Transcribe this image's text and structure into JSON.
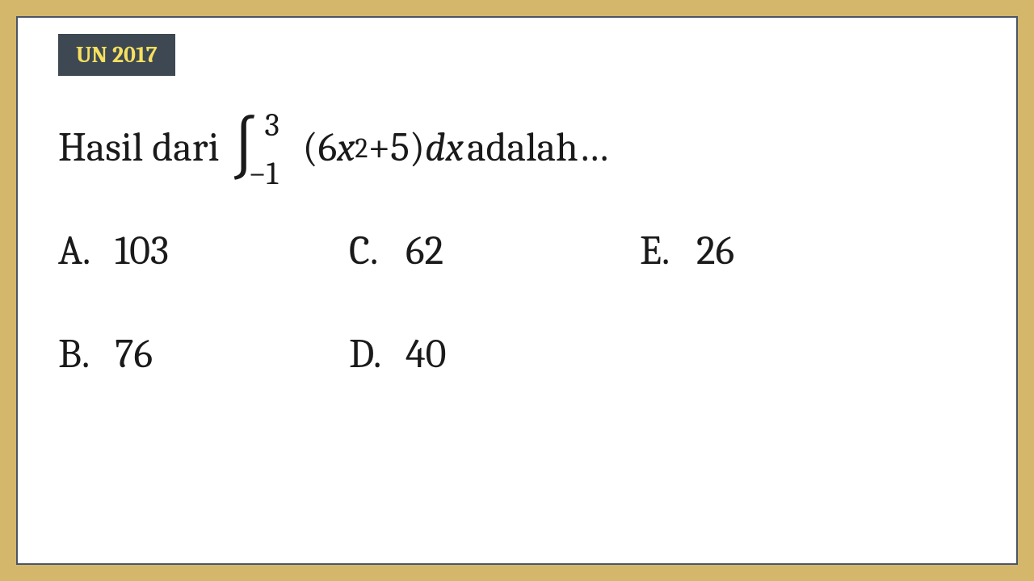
{
  "badge": {
    "label": "UN 2017",
    "bg_color": "#3d4852",
    "text_color": "#f6e05e"
  },
  "question": {
    "prefix": "Hasil dari ",
    "integral_symbol": "∫",
    "upper_limit": "3",
    "lower_limit": "−1",
    "lparen": "(",
    "coef1": "6",
    "var1": "x",
    "exp1": "2",
    "plus": " + ",
    "const1": "5",
    "rparen": ")",
    "space": " ",
    "d": "d",
    "var2": "x",
    "suffix": " adalah…"
  },
  "options": {
    "a": {
      "letter": "A.",
      "value": "103"
    },
    "b": {
      "letter": "B.",
      "value": "76"
    },
    "c": {
      "letter": "C.",
      "value": "62"
    },
    "d": {
      "letter": "D.",
      "value": "40"
    },
    "e": {
      "letter": "E.",
      "value": "26"
    }
  },
  "style": {
    "outer_bg": "#d4b76a",
    "inner_bg": "#ffffff",
    "border_color": "#4a5568",
    "text_color": "#1a1a1a",
    "question_fontsize": 50,
    "option_fontsize": 50,
    "badge_fontsize": 28
  }
}
